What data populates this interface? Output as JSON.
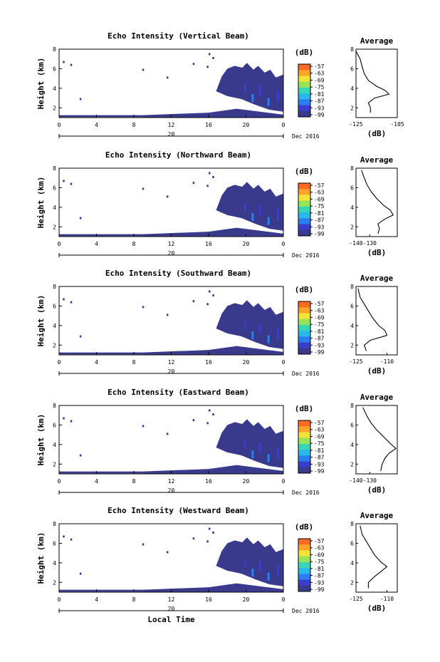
{
  "figure": {
    "date_label": "Dec 2016",
    "xlabel": "Local Time",
    "average_title": "Average",
    "avg_xlabel": "(dB)",
    "colorbar_unit": "(dB)",
    "colorbar_ticks": [
      "-57",
      "-63",
      "-69",
      "-75",
      "-81",
      "-87",
      "-93",
      "-99"
    ],
    "colorbar_colors": [
      "#ff6a24",
      "#ffa32a",
      "#f2e23a",
      "#96e45a",
      "#38d6b2",
      "#2ab8ea",
      "#2b7ef0",
      "#3a3ec8",
      "#3a3a8c"
    ]
  },
  "chart_data": [
    {
      "type": "heatmap",
      "title": "Echo Intensity (Vertical Beam)",
      "ylabel": "Height (km)",
      "xlabel": "",
      "ylim": [
        1,
        8
      ],
      "xticks": [
        "0",
        "4",
        "8",
        "12",
        "16",
        "20",
        "0"
      ],
      "yticks": [
        "2",
        "4",
        "6",
        "8"
      ],
      "date_day": "20",
      "avg_xlim": [
        -125,
        -105
      ],
      "avg_xticks": [
        "-125",
        "-105"
      ],
      "avg_ylim": [
        1,
        8
      ],
      "avg_yticks": [
        "2",
        "4",
        "6",
        "8"
      ],
      "avg_profile": [
        [
          -118,
          1.5
        ],
        [
          -118,
          2.0
        ],
        [
          -119,
          2.5
        ],
        [
          -116,
          3.0
        ],
        [
          -109,
          3.4
        ],
        [
          -111,
          3.8
        ],
        [
          -115,
          4.2
        ],
        [
          -119,
          4.8
        ],
        [
          -121,
          5.5
        ],
        [
          -122,
          6.2
        ],
        [
          -123,
          7.0
        ],
        [
          -125,
          7.8
        ]
      ]
    },
    {
      "type": "heatmap",
      "title": "Echo Intensity (Northward Beam)",
      "ylabel": "Height (km)",
      "xlabel": "",
      "ylim": [
        1,
        8
      ],
      "xticks": [
        "0",
        "4",
        "8",
        "12",
        "16",
        "20",
        "0"
      ],
      "yticks": [
        "2",
        "4",
        "6",
        "8"
      ],
      "date_day": "20",
      "avg_xlim": [
        -140,
        -110
      ],
      "avg_xticks": [
        "-140",
        "-130"
      ],
      "avg_ylim": [
        1,
        8
      ],
      "avg_yticks": [
        "2",
        "4",
        "6",
        "8"
      ],
      "avg_profile": [
        [
          -124,
          1.3
        ],
        [
          -123,
          1.8
        ],
        [
          -124,
          2.3
        ],
        [
          -119,
          2.8
        ],
        [
          -113,
          3.2
        ],
        [
          -115,
          3.7
        ],
        [
          -120,
          4.2
        ],
        [
          -125,
          4.9
        ],
        [
          -129,
          5.6
        ],
        [
          -132,
          6.3
        ],
        [
          -134,
          7.0
        ],
        [
          -136,
          7.8
        ]
      ]
    },
    {
      "type": "heatmap",
      "title": "Echo Intensity (Southward Beam)",
      "ylabel": "Height (km)",
      "xlabel": "",
      "ylim": [
        1,
        8
      ],
      "xticks": [
        "0",
        "4",
        "8",
        "12",
        "16",
        "20",
        "0"
      ],
      "yticks": [
        "2",
        "4",
        "6",
        "8"
      ],
      "date_day": "20",
      "avg_xlim": [
        -125,
        -105
      ],
      "avg_xticks": [
        "-125",
        "-110"
      ],
      "avg_ylim": [
        1,
        8
      ],
      "avg_yticks": [
        "2",
        "4",
        "6",
        "8"
      ],
      "avg_profile": [
        [
          -120,
          1.4
        ],
        [
          -121,
          2.0
        ],
        [
          -118,
          2.5
        ],
        [
          -110,
          3.0
        ],
        [
          -111,
          3.5
        ],
        [
          -114,
          4.0
        ],
        [
          -117,
          4.8
        ],
        [
          -119,
          5.5
        ],
        [
          -121,
          6.2
        ],
        [
          -123,
          6.9
        ],
        [
          -124,
          7.8
        ]
      ]
    },
    {
      "type": "heatmap",
      "title": "Echo Intensity (Eastward Beam)",
      "ylabel": "Height (km)",
      "xlabel": "",
      "ylim": [
        1,
        8
      ],
      "xticks": [
        "0",
        "4",
        "8",
        "12",
        "16",
        "20",
        "0"
      ],
      "yticks": [
        "2",
        "4",
        "6",
        "8"
      ],
      "date_day": "20",
      "avg_xlim": [
        -140,
        -110
      ],
      "avg_xticks": [
        "-140",
        "-130"
      ],
      "avg_ylim": [
        1,
        8
      ],
      "avg_yticks": [
        "2",
        "4",
        "6",
        "8"
      ],
      "avg_profile": [
        [
          -122,
          1.3
        ],
        [
          -121,
          2.0
        ],
        [
          -119,
          2.6
        ],
        [
          -116,
          3.1
        ],
        [
          -111,
          3.6
        ],
        [
          -115,
          4.1
        ],
        [
          -120,
          4.8
        ],
        [
          -125,
          5.5
        ],
        [
          -129,
          6.2
        ],
        [
          -132,
          6.9
        ],
        [
          -135,
          7.8
        ]
      ]
    },
    {
      "type": "heatmap",
      "title": "Echo Intensity (Westward Beam)",
      "ylabel": "Height (km)",
      "xlabel": "Local Time",
      "ylim": [
        1,
        8
      ],
      "xticks": [
        "0",
        "4",
        "8",
        "12",
        "16",
        "20",
        "0"
      ],
      "yticks": [
        "2",
        "4",
        "6",
        "8"
      ],
      "date_day": "20",
      "avg_xlim": [
        -125,
        -105
      ],
      "avg_xticks": [
        "-125",
        "-110"
      ],
      "avg_ylim": [
        1,
        8
      ],
      "avg_yticks": [
        "2",
        "4",
        "6",
        "8"
      ],
      "avg_profile": [
        [
          -119,
          1.4
        ],
        [
          -119,
          2.0
        ],
        [
          -116,
          2.6
        ],
        [
          -113,
          3.1
        ],
        [
          -110,
          3.6
        ],
        [
          -113,
          4.1
        ],
        [
          -116,
          4.8
        ],
        [
          -118,
          5.5
        ],
        [
          -120,
          6.2
        ],
        [
          -122,
          6.9
        ],
        [
          -123,
          7.8
        ]
      ]
    }
  ]
}
